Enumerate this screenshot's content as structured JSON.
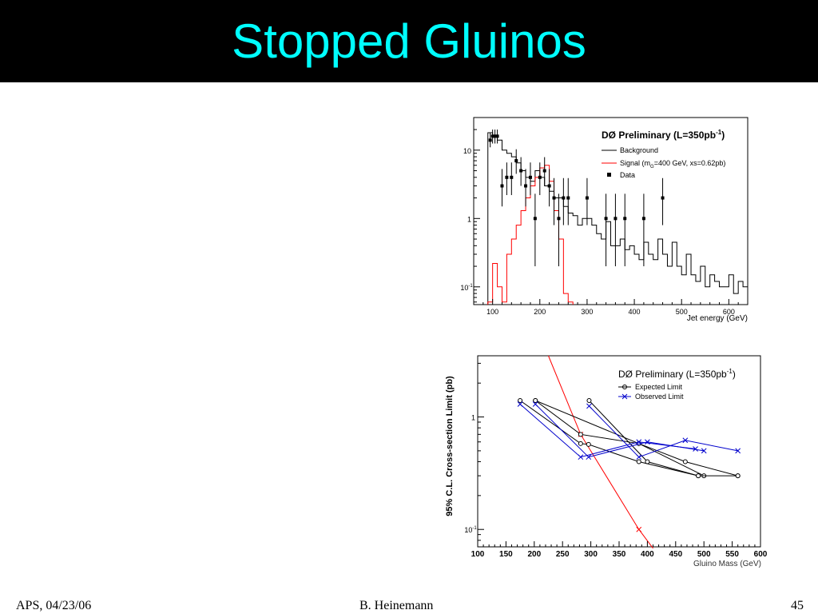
{
  "slide": {
    "title": "Stopped Gluinos",
    "title_color": "#00ffff",
    "footer_left": "APS, 04/23/06",
    "footer_center": "B. Heinemann",
    "footer_right": "45"
  },
  "chart_data": [
    {
      "type": "histogram",
      "title": "DØ Preliminary (L=350pb",
      "title_sup": "-1",
      "title_end": ")",
      "xlabel": "Jet energy (GeV)",
      "ylabel": "",
      "xlim": [
        60,
        640
      ],
      "ylim": [
        0.055,
        30
      ],
      "y_scale": "log",
      "x_ticks": [
        100,
        200,
        300,
        400,
        500,
        600
      ],
      "y_ticks": [
        {
          "v": 0.1,
          "base": "10",
          "exp": "-1"
        },
        {
          "v": 1,
          "label": "1"
        },
        {
          "v": 10,
          "label": "10"
        }
      ],
      "legend": {
        "position": "top-right",
        "background": "Background",
        "signal_pre": "Signal (m",
        "signal_sub": "G",
        "signal_post": "=400 GeV, xs=0.62pb)",
        "data": "Data"
      },
      "background": {
        "name": "Background",
        "color": "#000000",
        "bin_width": 10,
        "bin_start": 90,
        "values": [
          18,
          16,
          14,
          10,
          9,
          8,
          6.5,
          5,
          4,
          3.5,
          5,
          4,
          3,
          2.5,
          2,
          2,
          1.5,
          1.2,
          1.1,
          0.8,
          1,
          1,
          0.8,
          0.6,
          0.5,
          0.9,
          0.4,
          0.4,
          0.5,
          0.35,
          0.4,
          0.3,
          0.25,
          0.45,
          0.3,
          0.25,
          0.5,
          0.3,
          0.2,
          0.45,
          0.2,
          0.15,
          0.3,
          0.15,
          0.12,
          0.2,
          0.1,
          0.15,
          0.12,
          0.1,
          0.1,
          0.15,
          0.08,
          0.12,
          0.1
        ]
      },
      "signal": {
        "name": "Signal",
        "color": "#ff0000",
        "bin_width": 10,
        "bin_start": 90,
        "values": [
          0.06,
          0.22,
          0.1,
          0.06,
          0.3,
          0.5,
          0.8,
          1.3,
          2,
          3,
          4,
          5.5,
          6,
          3.5,
          1.3,
          0.5,
          0.08,
          0.06
        ]
      },
      "data": {
        "name": "Data",
        "color": "#000000",
        "x": [
          95,
          100,
          105,
          110,
          120,
          130,
          140,
          150,
          160,
          170,
          180,
          190,
          200,
          210,
          220,
          230,
          240,
          250,
          260,
          300,
          340,
          360,
          380,
          420,
          460
        ],
        "y": [
          14,
          16,
          16,
          16,
          3,
          4,
          4,
          7,
          5,
          3,
          4,
          1,
          4,
          5,
          3,
          2,
          1,
          2,
          2,
          2,
          1,
          1,
          1,
          1,
          2
        ],
        "err_lo": [
          3,
          3.5,
          3.5,
          3.5,
          1.5,
          1.8,
          1.8,
          2.5,
          2,
          1.5,
          1.8,
          0.8,
          1.8,
          2,
          1.5,
          1.2,
          0.8,
          1.2,
          1.2,
          1.2,
          0.8,
          0.8,
          0.8,
          0.8,
          1.2
        ],
        "err_hi": [
          4,
          4,
          4,
          4,
          2.3,
          2.6,
          2.6,
          3.3,
          2.9,
          2.3,
          2.6,
          1.3,
          2.6,
          2.9,
          2.3,
          1.9,
          1.3,
          1.9,
          1.9,
          1.9,
          1.3,
          1.3,
          1.3,
          1.3,
          1.9
        ]
      }
    },
    {
      "type": "line",
      "title": "DØ Preliminary (L=350pb",
      "title_sup": "-1",
      "title_end": ")",
      "xlabel": "Gluino Mass (GeV)",
      "ylabel": "95% C.L. Cross-section Limit (pb)",
      "xlim": [
        100,
        600
      ],
      "ylim": [
        0.07,
        3.5
      ],
      "y_scale": "log",
      "x_ticks": [
        100,
        150,
        200,
        250,
        300,
        350,
        400,
        450,
        500,
        550,
        600
      ],
      "y_ticks": [
        {
          "v": 0.1,
          "base": "10",
          "exp": "-1"
        },
        {
          "v": 1,
          "label": "1"
        }
      ],
      "legend": {
        "position": "top-right",
        "expected": "Expected Limit",
        "observed": "Observed Limit"
      },
      "expected": [
        {
          "name": "Expected Limit",
          "x": [
            175,
            282,
            296,
            385,
            490
          ],
          "y": [
            1.4,
            0.58,
            0.57,
            0.4,
            0.3
          ]
        },
        {
          "name": "Expected Limit",
          "x": [
            202,
            385,
            500
          ],
          "y": [
            1.4,
            0.58,
            0.3
          ]
        },
        {
          "name": "Expected Limit",
          "x": [
            297,
            400,
            490,
            560
          ],
          "y": [
            1.4,
            0.4,
            0.3,
            0.3
          ]
        },
        {
          "name": "Expected Limit",
          "x": [
            202,
            282,
            385,
            467,
            560
          ],
          "y": [
            1.4,
            0.7,
            0.58,
            0.4,
            0.3
          ]
        }
      ],
      "observed": [
        {
          "name": "Observed Limit",
          "x": [
            175,
            282,
            385,
            485
          ],
          "y": [
            1.3,
            0.44,
            0.6,
            0.52
          ]
        },
        {
          "name": "Observed Limit",
          "x": [
            202,
            296,
            400,
            500
          ],
          "y": [
            1.3,
            0.44,
            0.6,
            0.5
          ]
        },
        {
          "name": "Observed Limit",
          "x": [
            297,
            385,
            467,
            560
          ],
          "y": [
            1.25,
            0.44,
            0.62,
            0.5
          ]
        }
      ],
      "theory": {
        "color": "#ff0000",
        "x": [
          225,
          282,
          385,
          410
        ],
        "y": [
          3.5,
          0.7,
          0.1,
          0.068
        ]
      },
      "colors": {
        "expected": "#000000",
        "observed": "#0000cc",
        "theory": "#ff0000"
      }
    }
  ]
}
